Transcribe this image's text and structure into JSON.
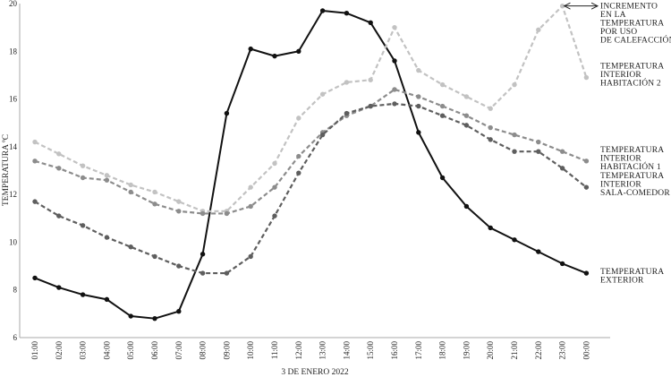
{
  "chart_data": {
    "type": "line",
    "xlabel": "3 DE ENERO 2022",
    "ylabel": "TEMPERATURA ºC",
    "ylim": [
      6,
      20
    ],
    "yticks": [
      6,
      8,
      10,
      12,
      14,
      16,
      18,
      20
    ],
    "grid": false,
    "legend_placement": "right, labels at line ends",
    "categories": [
      "01:00",
      "02:00",
      "03:00",
      "04:00",
      "05:00",
      "06:00",
      "07:00",
      "08:00",
      "09:00",
      "10:00",
      "11:00",
      "12:00",
      "13:00",
      "14:00",
      "15:00",
      "16:00",
      "17:00",
      "18:00",
      "19:00",
      "20:00",
      "21:00",
      "22:00",
      "23:00",
      "00:00"
    ],
    "series": [
      {
        "name": "TEMPERATURA EXTERIOR",
        "label_lines": [
          "TEMPERATURA",
          "EXTERIOR"
        ],
        "color": "#111111",
        "dashed": false,
        "values": [
          8.5,
          8.1,
          7.8,
          7.6,
          6.9,
          6.8,
          7.1,
          9.5,
          15.4,
          18.1,
          17.8,
          18.0,
          19.7,
          19.6,
          19.2,
          17.6,
          14.6,
          12.7,
          11.5,
          10.6,
          10.1,
          9.6,
          9.1,
          8.7
        ]
      },
      {
        "name": "TEMPERATURA INTERIOR HABITACIÓN 2",
        "label_lines": [
          "TEMPERATURA",
          "INTERIOR",
          "HABITACIÓN 2"
        ],
        "color": "#c2c2c2",
        "dashed": true,
        "values": [
          14.2,
          13.7,
          13.2,
          12.8,
          12.4,
          12.1,
          11.7,
          11.3,
          11.3,
          12.3,
          13.3,
          15.2,
          16.2,
          16.7,
          16.8,
          19.0,
          17.2,
          16.6,
          16.1,
          15.6,
          16.6,
          18.9,
          19.9,
          16.9
        ]
      },
      {
        "name": "TEMPERATURA INTERIOR HABITACIÓN 1",
        "label_lines": [
          "TEMPERATURA",
          "INTERIOR",
          "HABITACIÓN 1"
        ],
        "color": "#8c8c8c",
        "dashed": true,
        "values": [
          13.4,
          13.1,
          12.7,
          12.6,
          12.1,
          11.6,
          11.3,
          11.2,
          11.2,
          11.5,
          12.3,
          13.6,
          14.6,
          15.3,
          15.7,
          16.4,
          16.1,
          15.7,
          15.3,
          14.8,
          14.5,
          14.2,
          13.8,
          13.4
        ]
      },
      {
        "name": "TEMPERATURA INTERIOR SALA-COMEDOR",
        "label_lines": [
          "TEMPERATURA",
          "INTERIOR",
          "SALA-COMEDOR"
        ],
        "color": "#5e5e5e",
        "dashed": true,
        "values": [
          11.7,
          11.1,
          10.7,
          10.2,
          9.8,
          9.4,
          9.0,
          8.7,
          8.7,
          9.4,
          11.1,
          12.9,
          14.5,
          15.4,
          15.7,
          15.8,
          15.7,
          15.3,
          14.9,
          14.3,
          13.8,
          13.8,
          13.1,
          12.3
        ]
      }
    ],
    "annotation": {
      "text_lines": [
        "INCREMENTO",
        "EN LA",
        "TEMPERATURA",
        "POR USO",
        "DE CALEFACCIÓN"
      ],
      "category": "23:00",
      "value": 19.9
    }
  }
}
